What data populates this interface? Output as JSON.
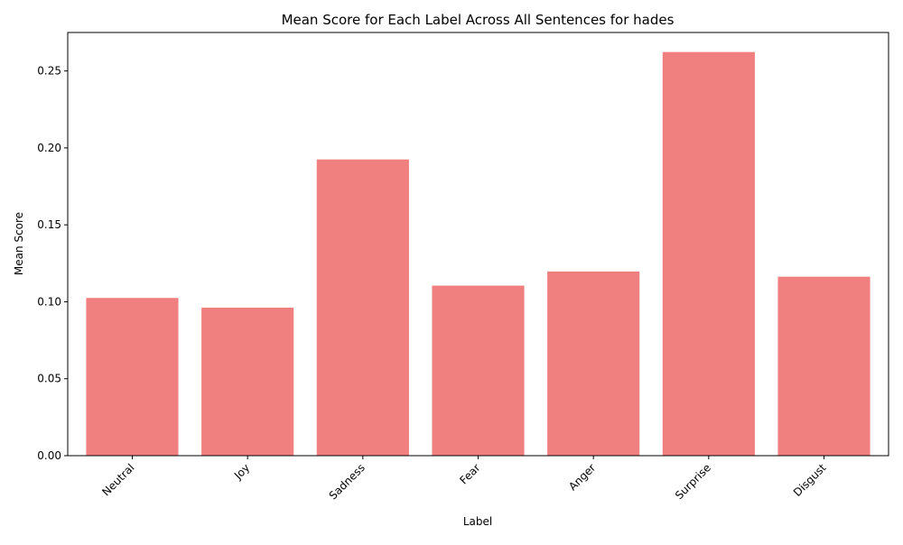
{
  "colors": {
    "bar": "#f08080",
    "axis": "#000000",
    "background": "#ffffff"
  },
  "chart_data": {
    "type": "bar",
    "title": "Mean Score for Each Label Across All Sentences for hades",
    "xlabel": "Label",
    "ylabel": "Mean Score",
    "categories": [
      "Neutral",
      "Joy",
      "Sadness",
      "Fear",
      "Anger",
      "Surprise",
      "Disgust"
    ],
    "values": [
      0.1025,
      0.0962,
      0.1925,
      0.1105,
      0.1197,
      0.2623,
      0.1163
    ],
    "ylim": [
      0,
      0.275
    ],
    "yticks": [
      "0.00",
      "0.05",
      "0.10",
      "0.15",
      "0.20",
      "0.25"
    ],
    "grid": false,
    "legend": "none"
  }
}
